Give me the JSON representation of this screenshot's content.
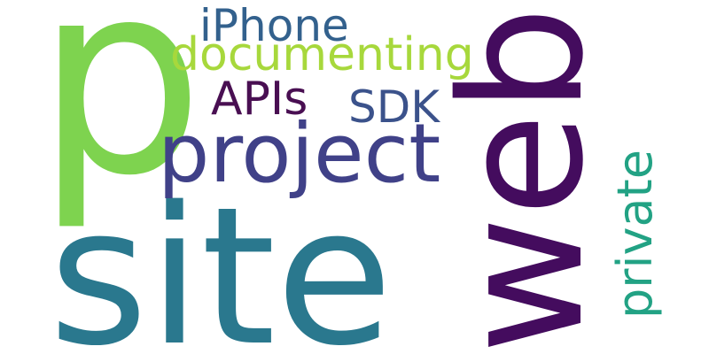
{
  "words": [
    {
      "text": "p",
      "color": "#7ed34f"
    },
    {
      "text": "site",
      "color": "#2a788e"
    },
    {
      "text": "web",
      "color": "#440c5e"
    },
    {
      "text": "project",
      "color": "#404188"
    },
    {
      "text": "documenting",
      "color": "#a7d83c"
    },
    {
      "text": "iPhone",
      "color": "#33618d"
    },
    {
      "text": "APIs",
      "color": "#490f52"
    },
    {
      "text": "SDK",
      "color": "#3b528b"
    },
    {
      "text": "private",
      "color": "#22a284"
    }
  ]
}
